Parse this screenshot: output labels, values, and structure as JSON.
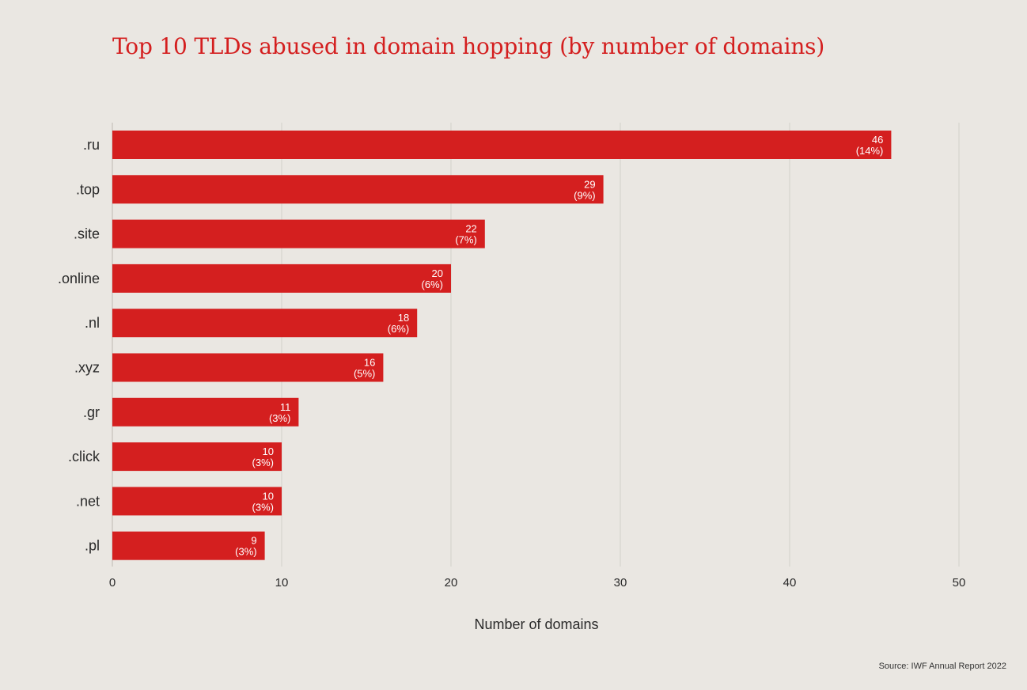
{
  "chart_data": {
    "type": "bar",
    "orientation": "horizontal",
    "title": "Top 10 TLDs abused in domain hopping (by number of domains)",
    "categories": [
      ".ru",
      ".top",
      ".site",
      ".online",
      ".nl",
      ".xyz",
      ".gr",
      ".click",
      ".net",
      ".pl"
    ],
    "values": [
      46,
      29,
      22,
      20,
      18,
      16,
      11,
      10,
      10,
      9
    ],
    "percent_labels": [
      "(14%)",
      "(9%)",
      "(7%)",
      "(6%)",
      "(6%)",
      "(5%)",
      "(3%)",
      "(3%)",
      "(3%)",
      "(3%)"
    ],
    "xlabel": "Number of domains",
    "ylabel": "",
    "xlim": [
      0,
      50
    ],
    "xticks": [
      0,
      10,
      20,
      30,
      40,
      50
    ],
    "grid": true,
    "bar_color": "#D41F1F",
    "source": "Source: IWF Annual Report 2022"
  }
}
